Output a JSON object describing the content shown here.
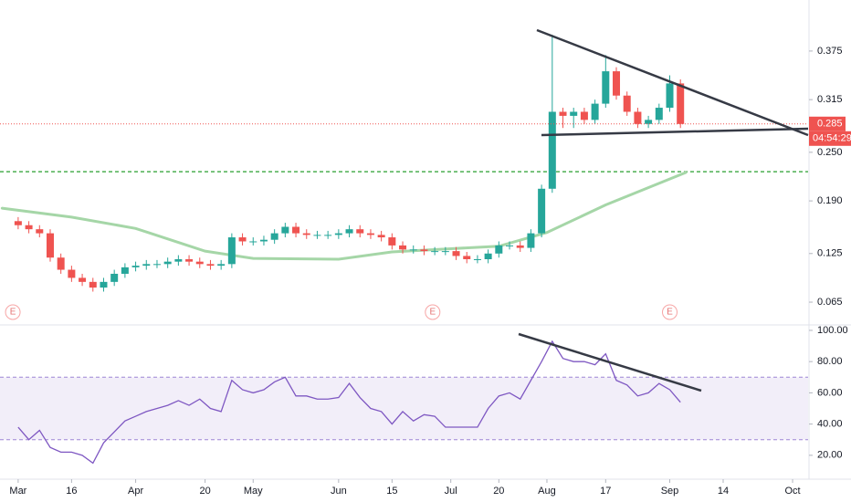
{
  "chart_data": [
    {
      "type": "candlestick",
      "xlim": [
        -3.4,
        147.9
      ],
      "xticks": [
        {
          "value": 0,
          "label": "Mar"
        },
        {
          "value": 10,
          "label": "16"
        },
        {
          "value": 22,
          "label": "Apr"
        },
        {
          "value": 35,
          "label": "20"
        },
        {
          "value": 44,
          "label": "May"
        },
        {
          "value": 60,
          "label": "Jun"
        },
        {
          "value": 70,
          "label": "15"
        },
        {
          "value": 81,
          "label": "Jul"
        },
        {
          "value": 90,
          "label": "20"
        },
        {
          "value": 99,
          "label": "Aug"
        },
        {
          "value": 110,
          "label": "17"
        },
        {
          "value": 122,
          "label": "Sep"
        },
        {
          "value": 132,
          "label": "14"
        },
        {
          "value": 145,
          "label": "Oct"
        }
      ],
      "ylim": [
        0.038,
        0.438
      ],
      "yticks": [
        0.375,
        0.315,
        {
          "value": 0.25,
          "label": "0.250"
        },
        {
          "value": 0.19,
          "label": "0.190"
        },
        0.125,
        0.065
      ],
      "up_color": "#26a69a",
      "down_color": "#ef5350",
      "x": [
        0,
        2,
        4,
        6,
        8,
        10,
        12,
        14,
        16,
        18,
        20,
        22,
        24,
        26,
        28,
        30,
        32,
        34,
        36,
        38,
        40,
        42,
        44,
        46,
        48,
        50,
        52,
        54,
        56,
        58,
        60,
        62,
        64,
        66,
        68,
        70,
        72,
        74,
        76,
        78,
        80,
        82,
        84,
        86,
        88,
        90,
        92,
        94,
        96,
        98,
        100,
        102,
        104,
        106,
        108,
        110,
        112,
        114,
        116,
        118,
        120,
        122,
        124
      ],
      "open": [
        0.165,
        0.16,
        0.155,
        0.15,
        0.12,
        0.105,
        0.095,
        0.09,
        0.083,
        0.09,
        0.1,
        0.108,
        0.11,
        0.112,
        0.112,
        0.115,
        0.118,
        0.115,
        0.112,
        0.11,
        0.112,
        0.145,
        0.14,
        0.14,
        0.142,
        0.15,
        0.158,
        0.15,
        0.148,
        0.148,
        0.148,
        0.15,
        0.155,
        0.15,
        0.148,
        0.145,
        0.135,
        0.13,
        0.13,
        0.128,
        0.128,
        0.128,
        0.122,
        0.118,
        0.118,
        0.125,
        0.135,
        0.135,
        0.132,
        0.15,
        0.205,
        0.3,
        0.295,
        0.3,
        0.29,
        0.31,
        0.35,
        0.32,
        0.3,
        0.285,
        0.29,
        0.305,
        0.335
      ],
      "high": [
        0.17,
        0.165,
        0.16,
        0.155,
        0.125,
        0.11,
        0.1,
        0.095,
        0.095,
        0.105,
        0.113,
        0.115,
        0.117,
        0.117,
        0.12,
        0.123,
        0.123,
        0.12,
        0.117,
        0.117,
        0.15,
        0.15,
        0.145,
        0.147,
        0.155,
        0.163,
        0.163,
        0.155,
        0.153,
        0.153,
        0.155,
        0.16,
        0.16,
        0.155,
        0.153,
        0.15,
        0.14,
        0.135,
        0.135,
        0.133,
        0.133,
        0.133,
        0.127,
        0.123,
        0.13,
        0.14,
        0.14,
        0.14,
        0.155,
        0.21,
        0.395,
        0.305,
        0.305,
        0.305,
        0.315,
        0.37,
        0.355,
        0.325,
        0.305,
        0.295,
        0.31,
        0.345,
        0.34
      ],
      "low": [
        0.155,
        0.15,
        0.145,
        0.115,
        0.1,
        0.09,
        0.085,
        0.078,
        0.078,
        0.085,
        0.095,
        0.103,
        0.105,
        0.107,
        0.107,
        0.11,
        0.11,
        0.107,
        0.105,
        0.105,
        0.107,
        0.135,
        0.135,
        0.135,
        0.137,
        0.145,
        0.145,
        0.143,
        0.143,
        0.143,
        0.143,
        0.145,
        0.145,
        0.143,
        0.14,
        0.13,
        0.125,
        0.125,
        0.123,
        0.123,
        0.123,
        0.117,
        0.113,
        0.113,
        0.113,
        0.12,
        0.13,
        0.127,
        0.127,
        0.145,
        0.2,
        0.28,
        0.28,
        0.285,
        0.285,
        0.305,
        0.315,
        0.295,
        0.28,
        0.28,
        0.285,
        0.3,
        0.28
      ],
      "close": [
        0.16,
        0.155,
        0.15,
        0.12,
        0.105,
        0.095,
        0.09,
        0.083,
        0.09,
        0.1,
        0.108,
        0.11,
        0.112,
        0.112,
        0.115,
        0.118,
        0.115,
        0.112,
        0.11,
        0.112,
        0.145,
        0.14,
        0.14,
        0.142,
        0.15,
        0.158,
        0.15,
        0.148,
        0.148,
        0.148,
        0.15,
        0.155,
        0.15,
        0.148,
        0.145,
        0.135,
        0.13,
        0.13,
        0.128,
        0.128,
        0.128,
        0.122,
        0.118,
        0.118,
        0.125,
        0.135,
        0.135,
        0.132,
        0.15,
        0.205,
        0.3,
        0.295,
        0.3,
        0.29,
        0.31,
        0.35,
        0.32,
        0.3,
        0.285,
        0.29,
        0.305,
        0.335,
        0.285
      ],
      "moving_average": {
        "color": "#a5d6a7",
        "x": [
          -3,
          10,
          22,
          35,
          44,
          60,
          70,
          81,
          90,
          99,
          110,
          125
        ],
        "values": [
          0.181,
          0.17,
          0.156,
          0.128,
          0.119,
          0.118,
          0.127,
          0.131,
          0.134,
          0.151,
          0.185,
          0.225
        ]
      },
      "level": 0.226,
      "level_color": "#4caf50",
      "last_price": 0.285,
      "countdown": "04:54:29",
      "events": {
        "label": "E",
        "x": [
          -1,
          77.6,
          122
        ]
      }
    },
    {
      "type": "line",
      "xlim": [
        -3.4,
        147.9
      ],
      "ylim": [
        4.7,
        102.9
      ],
      "yticks": [
        {
          "value": 100,
          "label": "100.00"
        },
        {
          "value": 80,
          "label": "80.00"
        },
        {
          "value": 60,
          "label": "60.00"
        },
        {
          "value": 40,
          "label": "40.00"
        },
        {
          "value": 20,
          "label": "20.00"
        }
      ],
      "band": [
        30,
        70
      ],
      "color": "#7e57c2",
      "x": [
        0,
        2,
        4,
        6,
        8,
        10,
        12,
        14,
        16,
        18,
        20,
        22,
        24,
        26,
        28,
        30,
        32,
        34,
        36,
        38,
        40,
        42,
        44,
        46,
        48,
        50,
        52,
        54,
        56,
        58,
        60,
        62,
        64,
        66,
        68,
        70,
        72,
        74,
        76,
        78,
        80,
        82,
        84,
        86,
        88,
        90,
        92,
        94,
        96,
        98,
        100,
        102,
        104,
        106,
        108,
        110,
        112,
        114,
        116,
        118,
        120,
        122,
        124
      ],
      "values": [
        38,
        30,
        36,
        25,
        22,
        22,
        20,
        15,
        28,
        35,
        42,
        45,
        48,
        50,
        52,
        55,
        52,
        56,
        50,
        48,
        68,
        62,
        60,
        62,
        67,
        70,
        58,
        58,
        56,
        56,
        57,
        66,
        57,
        50,
        48,
        40,
        48,
        42,
        46,
        45,
        38,
        38,
        38,
        38,
        50,
        58,
        60,
        56,
        68,
        80,
        93,
        82,
        80,
        80,
        78,
        85,
        68,
        65,
        58,
        60,
        66,
        62,
        54
      ]
    }
  ]
}
